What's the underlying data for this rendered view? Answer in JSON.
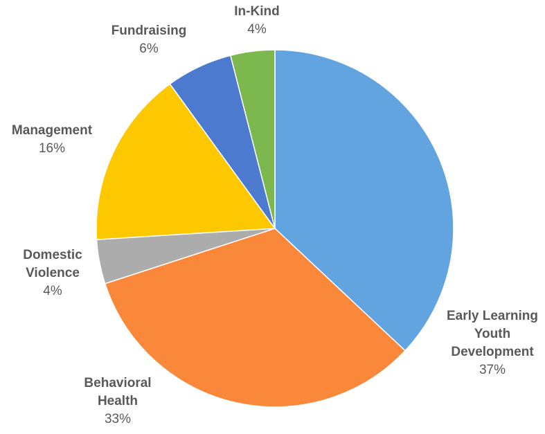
{
  "chart_data": {
    "type": "pie",
    "start_angle_deg": 0,
    "direction": "clockwise",
    "slices": [
      {
        "label": "Early Learning Youth Development",
        "label_lines": [
          "Early Learning",
          "Youth",
          "Development"
        ],
        "value": 37,
        "value_label": "37%",
        "color": "#61a4e0"
      },
      {
        "label": "Behavioral Health",
        "label_lines": [
          "Behavioral",
          "Health"
        ],
        "value": 33,
        "value_label": "33%",
        "color": "#fa883a"
      },
      {
        "label": "Domestic Violence",
        "label_lines": [
          "Domestic",
          "Violence"
        ],
        "value": 4,
        "value_label": "4%",
        "color": "#acacac"
      },
      {
        "label": "Management",
        "label_lines": [
          "Management"
        ],
        "value": 16,
        "value_label": "16%",
        "color": "#fdc800"
      },
      {
        "label": "Fundraising",
        "label_lines": [
          "Fundraising"
        ],
        "value": 6,
        "value_label": "6%",
        "color": "#4b7acf"
      },
      {
        "label": "In-Kind",
        "label_lines": [
          "In-Kind"
        ],
        "value": 4,
        "value_label": "4%",
        "color": "#7cb84d"
      }
    ]
  }
}
